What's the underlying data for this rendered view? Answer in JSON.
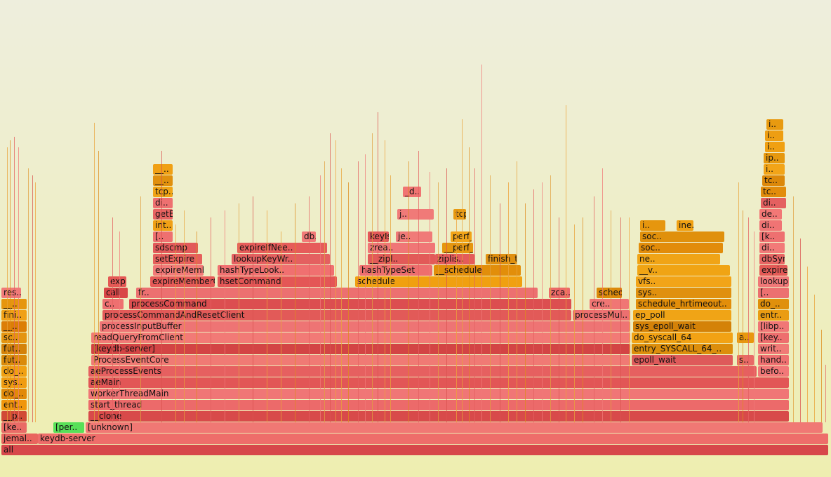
{
  "root": {
    "label": "all",
    "color": "#d9484c"
  },
  "process": {
    "label": "keydb-server",
    "color": "#e86464"
  },
  "frames": [
    {
      "label": "all",
      "color": "#d7474a"
    },
    {
      "label": "jemal..",
      "color": "#e9655e"
    },
    {
      "label": "keydb-server",
      "color": "#ee6d6a"
    },
    {
      "label": "[ke..",
      "color": "#e96b66"
    },
    {
      "label": "[per..",
      "color": "#58e058"
    },
    {
      "label": "[unknown]",
      "color": "#f07874"
    },
    {
      "label": "__p..",
      "color": "#d14a36"
    },
    {
      "label": "__clone",
      "color": "#d84a4a"
    },
    {
      "label": "ent..",
      "color": "#f0960c"
    },
    {
      "label": "start_thread",
      "color": "#ec6a6a"
    },
    {
      "label": "do_..",
      "color": "#e28a08"
    },
    {
      "label": "workerThreadMain",
      "color": "#f07676"
    },
    {
      "label": "sys..",
      "color": "#f09c10"
    },
    {
      "label": "aeMain",
      "color": "#e25656"
    },
    {
      "label": "do_..",
      "color": "#f0a012"
    },
    {
      "label": "aeProcessEvents",
      "color": "#e66060"
    },
    {
      "label": "befo..",
      "color": "#f27878"
    },
    {
      "label": "fut..",
      "color": "#da8a0a"
    },
    {
      "label": "ProcessEventCore",
      "color": "#f07a74"
    },
    {
      "label": "epoll_wait",
      "color": "#de5a5a"
    },
    {
      "label": "s..",
      "color": "#e86a66"
    },
    {
      "label": "hand..",
      "color": "#ee7070"
    },
    {
      "label": "fut..",
      "color": "#d4820a"
    },
    {
      "label": "[keydb-server]",
      "color": "#d34444"
    },
    {
      "label": "entry_SYSCALL_64_..",
      "color": "#dc8e0c"
    },
    {
      "label": "writ..",
      "color": "#f07a76"
    },
    {
      "label": "sc..",
      "color": "#e49410"
    },
    {
      "label": "readQueryFromClient",
      "color": "#f27a76"
    },
    {
      "label": "do_syscall_64",
      "color": "#f2a214"
    },
    {
      "label": "a..",
      "color": "#e8980e"
    },
    {
      "label": "[key..",
      "color": "#ee6e6e"
    },
    {
      "label": "__..",
      "color": "#dc7e06"
    },
    {
      "label": "processInputBuffer",
      "color": "#ee7474"
    },
    {
      "label": "sys_epoll_wait",
      "color": "#d48208"
    },
    {
      "label": "[libp..",
      "color": "#f07676"
    },
    {
      "label": "fini..",
      "color": "#f0a016"
    },
    {
      "label": "processCommandAndResetClient",
      "color": "#e25a58"
    },
    {
      "label": "processMul..",
      "color": "#ec7070"
    },
    {
      "label": "ep_poll",
      "color": "#f0a416"
    },
    {
      "label": "entr..",
      "color": "#ea9c12"
    },
    {
      "label": "__..",
      "color": "#e6960e"
    },
    {
      "label": "c..",
      "color": "#ee7070"
    },
    {
      "label": "processCommand",
      "color": "#dc4e50"
    },
    {
      "label": "cre..",
      "color": "#f07674"
    },
    {
      "label": "schedule_hrtimeout..",
      "color": "#e28e0a"
    },
    {
      "label": "do_..",
      "color": "#e0900c"
    },
    {
      "label": "res..",
      "color": "#f07a78"
    },
    {
      "label": "call",
      "color": "#d94646"
    },
    {
      "label": "fr..",
      "color": "#ec7070"
    },
    {
      "label": "zca..",
      "color": "#ec6a68"
    },
    {
      "label": "schedule_hrtimeout..",
      "color": "#dc8a0a"
    },
    {
      "label": "sys..",
      "color": "#e0900e"
    },
    {
      "label": "[..",
      "color": "#ec7070"
    },
    {
      "label": "expireGeneri..",
      "color": "#e45854"
    },
    {
      "label": "expireMemberCommand",
      "color": "#e65a58"
    },
    {
      "label": "hsetCommand",
      "color": "#e45656"
    },
    {
      "label": "schedule",
      "color": "#f0a010"
    },
    {
      "label": "vfs..",
      "color": "#f2a418"
    },
    {
      "label": "lookupK..",
      "color": "#f07878"
    },
    {
      "label": "expireMemberCore",
      "color": "#f27a78"
    },
    {
      "label": "hashTypeLook..",
      "color": "#f07070"
    },
    {
      "label": "hashTypeSet",
      "color": "#ee6e6e"
    },
    {
      "label": "__schedule",
      "color": "#e28e0a"
    },
    {
      "label": "__v..",
      "color": "#f0a414"
    },
    {
      "label": "expireIf..",
      "color": "#e45a56"
    },
    {
      "label": "setExpire",
      "color": "#e6605c"
    },
    {
      "label": "lookupKeyWr..",
      "color": "#e46060"
    },
    {
      "label": "__zipl..",
      "color": "#e25a58"
    },
    {
      "label": "ziplis..",
      "color": "#e45c5a"
    },
    {
      "label": "finish_task_switch",
      "color": "#e09010"
    },
    {
      "label": "ne..",
      "color": "#f0a416"
    },
    {
      "label": "dbSync..",
      "color": "#e86664"
    },
    {
      "label": "sdscmp",
      "color": "#e25a5a"
    },
    {
      "label": "expireIfNee..",
      "color": "#e65c5a"
    },
    {
      "label": "zrea..",
      "color": "#f07676"
    },
    {
      "label": "__perf_event_ta..",
      "color": "#e6960e"
    },
    {
      "label": "soc..",
      "color": "#e28c0a"
    },
    {
      "label": "di..",
      "color": "#f27a78"
    },
    {
      "label": "[..",
      "color": "#ee7070"
    },
    {
      "label": "db..",
      "color": "#f27a78"
    },
    {
      "label": "keyIs..",
      "color": "#e45858"
    },
    {
      "label": "je..",
      "color": "#f07a78"
    },
    {
      "label": "perf_pmu_enabl..",
      "color": "#f2a416"
    },
    {
      "label": "soc..",
      "color": "#e0900c"
    },
    {
      "label": "[k..",
      "color": "#ee7070"
    },
    {
      "label": "int..",
      "color": "#f0a016"
    },
    {
      "label": "i..",
      "color": "#e6960e"
    },
    {
      "label": "ine..",
      "color": "#f0a012"
    },
    {
      "label": "di..",
      "color": "#f07474"
    },
    {
      "label": "getEx..",
      "color": "#e86462"
    },
    {
      "label": "j..",
      "color": "#f07a78"
    },
    {
      "label": "tcp..",
      "color": "#e89a10"
    },
    {
      "label": "de..",
      "color": "#f27876"
    },
    {
      "label": "di..",
      "color": "#ee7070"
    },
    {
      "label": "di..",
      "color": "#e46060"
    },
    {
      "label": "tcp..",
      "color": "#f0a416"
    },
    {
      "label": "_d..",
      "color": "#f07472"
    },
    {
      "label": "tc..",
      "color": "#e28c0c"
    },
    {
      "label": "__..",
      "color": "#e0900e"
    },
    {
      "label": "tc..",
      "color": "#dc880a"
    },
    {
      "label": "__..",
      "color": "#f0a014"
    },
    {
      "label": "i..",
      "color": "#f2a418"
    },
    {
      "label": "ip..",
      "color": "#e6980e"
    },
    {
      "label": "i..",
      "color": "#f0a012"
    },
    {
      "label": "i..",
      "color": "#ee9e12"
    },
    {
      "label": "i..",
      "color": "#e89a10"
    }
  ]
}
